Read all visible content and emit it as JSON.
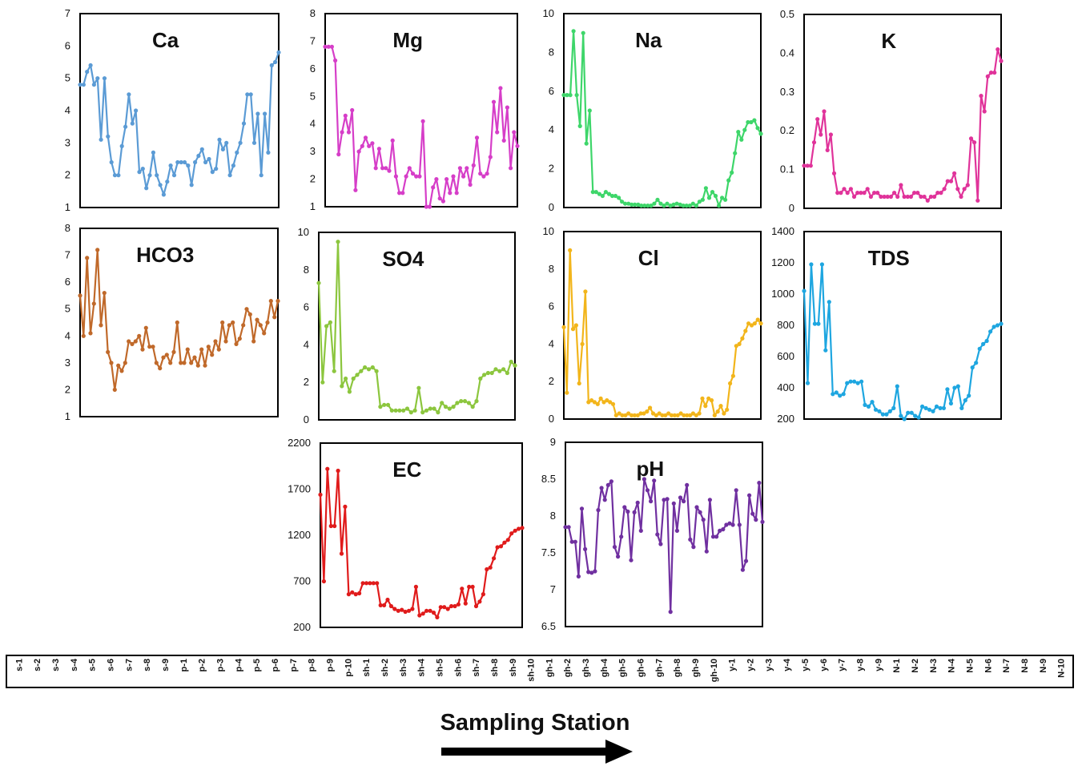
{
  "figure": {
    "x_axis_title": "Sampling Station",
    "arrow_color": "#000000"
  },
  "chart_data": [
    {
      "id": "ca",
      "type": "line",
      "title": "Ca",
      "color": "#5b9bd5",
      "ylim": [
        1,
        7
      ],
      "yticks": [
        1,
        2,
        3,
        4,
        5,
        6,
        7
      ],
      "values": [
        4.8,
        4.8,
        5.2,
        5.4,
        4.8,
        5.0,
        3.1,
        5.0,
        3.2,
        2.4,
        2.0,
        2.0,
        2.9,
        3.5,
        4.5,
        3.6,
        4.0,
        2.1,
        2.2,
        1.6,
        2.0,
        2.7,
        2.0,
        1.7,
        1.4,
        1.8,
        2.3,
        2.0,
        2.4,
        2.4,
        2.4,
        2.3,
        1.7,
        2.4,
        2.6,
        2.8,
        2.4,
        2.5,
        2.1,
        2.2,
        3.1,
        2.8,
        3.0,
        2.0,
        2.3,
        2.7,
        3.0,
        3.6,
        4.5,
        4.5,
        3.0,
        3.9,
        2.0,
        3.9,
        2.7,
        5.4,
        5.5,
        5.8
      ]
    },
    {
      "id": "mg",
      "type": "line",
      "title": "Mg",
      "color": "#d63ec8",
      "ylim": [
        1,
        8
      ],
      "yticks": [
        1,
        2,
        3,
        4,
        5,
        6,
        7,
        8
      ],
      "values": [
        6.8,
        6.8,
        6.8,
        6.3,
        2.9,
        3.7,
        4.3,
        3.7,
        4.5,
        1.6,
        3.0,
        3.2,
        3.5,
        3.2,
        3.3,
        2.4,
        3.1,
        2.4,
        2.4,
        2.3,
        3.4,
        2.1,
        1.5,
        1.5,
        2.1,
        2.4,
        2.2,
        2.1,
        2.1,
        4.1,
        1.0,
        1.0,
        1.7,
        2.0,
        1.3,
        1.2,
        2.0,
        1.5,
        2.1,
        1.5,
        2.4,
        2.1,
        2.4,
        1.8,
        2.5,
        3.5,
        2.2,
        2.1,
        2.2,
        2.8,
        4.8,
        3.7,
        5.3,
        3.4,
        4.6,
        2.4,
        3.7,
        3.2
      ]
    },
    {
      "id": "na",
      "type": "line",
      "title": "Na",
      "color": "#3ed66a",
      "ylim": [
        0,
        10
      ],
      "yticks": [
        0,
        2,
        4,
        6,
        8,
        10
      ],
      "values": [
        5.8,
        5.8,
        5.8,
        9.1,
        5.8,
        4.2,
        9.0,
        3.3,
        5.0,
        0.8,
        0.8,
        0.7,
        0.6,
        0.8,
        0.7,
        0.6,
        0.6,
        0.5,
        0.3,
        0.2,
        0.2,
        0.15,
        0.15,
        0.15,
        0.1,
        0.1,
        0.1,
        0.1,
        0.2,
        0.4,
        0.2,
        0.1,
        0.2,
        0.1,
        0.15,
        0.2,
        0.15,
        0.1,
        0.1,
        0.1,
        0.2,
        0.1,
        0.3,
        0.4,
        1.0,
        0.5,
        0.8,
        0.6,
        0.1,
        0.5,
        0.4,
        1.4,
        1.8,
        2.8,
        3.9,
        3.5,
        4.0,
        4.4,
        4.4,
        4.5,
        4.1,
        3.8
      ]
    },
    {
      "id": "k",
      "type": "line",
      "title": "K",
      "color": "#e0339a",
      "ylim": [
        0,
        0.5
      ],
      "yticks": [
        0,
        0.1,
        0.2,
        0.3,
        0.4,
        0.5
      ],
      "values": [
        0.11,
        0.11,
        0.11,
        0.17,
        0.23,
        0.19,
        0.25,
        0.15,
        0.19,
        0.09,
        0.04,
        0.04,
        0.05,
        0.04,
        0.05,
        0.03,
        0.04,
        0.04,
        0.04,
        0.05,
        0.03,
        0.04,
        0.04,
        0.03,
        0.03,
        0.03,
        0.03,
        0.04,
        0.03,
        0.06,
        0.03,
        0.03,
        0.03,
        0.04,
        0.04,
        0.03,
        0.03,
        0.02,
        0.03,
        0.03,
        0.04,
        0.04,
        0.05,
        0.07,
        0.07,
        0.09,
        0.05,
        0.03,
        0.05,
        0.06,
        0.18,
        0.17,
        0.02,
        0.29,
        0.25,
        0.34,
        0.35,
        0.35,
        0.41,
        0.38
      ]
    },
    {
      "id": "hco3",
      "type": "line",
      "title": "HCO3",
      "color": "#c0692a",
      "ylim": [
        1,
        8
      ],
      "yticks": [
        1,
        2,
        3,
        4,
        5,
        6,
        7,
        8
      ],
      "values": [
        5.5,
        4.0,
        6.9,
        4.1,
        5.2,
        7.2,
        4.4,
        5.6,
        3.4,
        3.0,
        2.0,
        2.9,
        2.7,
        3.0,
        3.8,
        3.7,
        3.8,
        4.0,
        3.5,
        4.3,
        3.6,
        3.6,
        3.0,
        2.8,
        3.2,
        3.3,
        3.0,
        3.4,
        4.5,
        3.0,
        3.0,
        3.5,
        3.0,
        3.2,
        2.9,
        3.5,
        2.9,
        3.6,
        3.3,
        3.8,
        3.5,
        4.5,
        3.8,
        4.4,
        4.5,
        3.7,
        3.9,
        4.4,
        5.0,
        4.8,
        3.8,
        4.6,
        4.4,
        4.1,
        4.5,
        5.3,
        4.7,
        5.3
      ]
    },
    {
      "id": "so4",
      "type": "line",
      "title": "SO4",
      "color": "#8cc63e",
      "ylim": [
        0,
        10
      ],
      "yticks": [
        0,
        2,
        4,
        6,
        8,
        10
      ],
      "values": [
        7.3,
        2.0,
        5.0,
        5.2,
        2.6,
        9.5,
        1.8,
        2.2,
        1.5,
        2.2,
        2.4,
        2.6,
        2.8,
        2.7,
        2.8,
        2.6,
        0.7,
        0.8,
        0.8,
        0.5,
        0.5,
        0.5,
        0.5,
        0.6,
        0.4,
        0.5,
        1.7,
        0.4,
        0.5,
        0.6,
        0.6,
        0.4,
        0.9,
        0.7,
        0.6,
        0.7,
        0.9,
        1.0,
        1.0,
        0.9,
        0.7,
        1.0,
        2.2,
        2.4,
        2.5,
        2.5,
        2.7,
        2.6,
        2.7,
        2.5,
        3.1,
        2.9
      ]
    },
    {
      "id": "cl",
      "type": "line",
      "title": "Cl",
      "color": "#f2b51b",
      "ylim": [
        0,
        10
      ],
      "yticks": [
        0,
        2,
        4,
        6,
        8,
        10
      ],
      "values": [
        4.9,
        1.4,
        9.0,
        4.8,
        5.0,
        1.9,
        4.0,
        6.8,
        0.9,
        1.0,
        0.9,
        0.8,
        1.1,
        0.9,
        1.0,
        0.9,
        0.8,
        0.2,
        0.3,
        0.2,
        0.2,
        0.3,
        0.2,
        0.2,
        0.2,
        0.3,
        0.3,
        0.4,
        0.6,
        0.3,
        0.2,
        0.3,
        0.2,
        0.2,
        0.3,
        0.2,
        0.2,
        0.2,
        0.3,
        0.2,
        0.2,
        0.2,
        0.3,
        0.2,
        0.3,
        1.1,
        0.7,
        1.1,
        1.0,
        0.2,
        0.4,
        0.7,
        0.3,
        0.5,
        1.9,
        2.3,
        3.9,
        4.0,
        4.3,
        4.7,
        5.1,
        5.0,
        5.1,
        5.3,
        5.1
      ]
    },
    {
      "id": "tds",
      "type": "line",
      "title": "TDS",
      "color": "#1ea6e0",
      "ylim": [
        200,
        1400
      ],
      "yticks": [
        200,
        400,
        600,
        800,
        1000,
        1200,
        1400
      ],
      "values": [
        1020,
        430,
        1190,
        810,
        810,
        1190,
        640,
        950,
        360,
        370,
        350,
        360,
        430,
        440,
        440,
        430,
        440,
        290,
        280,
        310,
        260,
        250,
        230,
        230,
        250,
        270,
        410,
        220,
        200,
        240,
        240,
        220,
        210,
        280,
        270,
        260,
        250,
        280,
        270,
        270,
        390,
        300,
        400,
        410,
        270,
        320,
        350,
        530,
        560,
        650,
        680,
        700,
        760,
        790,
        800,
        810
      ]
    },
    {
      "id": "ec",
      "type": "line",
      "title": "EC",
      "color": "#e01b1b",
      "ylim": [
        200,
        2200
      ],
      "yticks": [
        200,
        700,
        1200,
        1700,
        2200
      ],
      "values": [
        1640,
        700,
        1920,
        1300,
        1300,
        1900,
        1000,
        1510,
        560,
        580,
        560,
        570,
        680,
        680,
        680,
        680,
        680,
        440,
        440,
        500,
        430,
        400,
        380,
        390,
        370,
        380,
        400,
        640,
        330,
        350,
        380,
        380,
        360,
        310,
        420,
        420,
        400,
        430,
        430,
        450,
        620,
        460,
        640,
        640,
        430,
        480,
        560,
        830,
        850,
        950,
        1070,
        1080,
        1120,
        1150,
        1220,
        1250,
        1270,
        1280
      ]
    },
    {
      "id": "ph",
      "type": "line",
      "title": "pH",
      "color": "#7030a0",
      "ylim": [
        6.5,
        9
      ],
      "yticks": [
        6.5,
        7,
        7.5,
        8,
        8.5,
        9
      ],
      "values": [
        7.85,
        7.85,
        7.65,
        7.65,
        7.18,
        8.1,
        7.55,
        7.24,
        7.23,
        7.25,
        8.08,
        8.38,
        8.22,
        8.42,
        8.47,
        7.58,
        7.45,
        7.72,
        8.12,
        8.06,
        7.4,
        8.05,
        8.18,
        7.8,
        8.5,
        8.35,
        8.2,
        8.48,
        7.75,
        7.62,
        8.22,
        8.23,
        6.7,
        8.17,
        7.8,
        8.25,
        8.2,
        8.42,
        7.68,
        7.58,
        8.12,
        8.05,
        7.95,
        7.52,
        8.22,
        7.72,
        7.72,
        7.8,
        7.82,
        7.88,
        7.9,
        7.88,
        8.35,
        7.88,
        7.27,
        7.39,
        8.28,
        8.03,
        7.95,
        8.45,
        7.92
      ]
    }
  ],
  "stations": [
    "s-1",
    "s-2",
    "s-3",
    "s-4",
    "s-5",
    "s-6",
    "s-7",
    "s-8",
    "s-9",
    "p-1",
    "p-2",
    "p-3",
    "p-4",
    "p-5",
    "p-6",
    "p-7",
    "p-8",
    "p-9",
    "p-10",
    "sh-1",
    "sh-2",
    "sh-3",
    "sh-4",
    "sh-5",
    "sh-6",
    "sh-7",
    "sh-8",
    "sh-9",
    "sh-10",
    "gh-1",
    "gh-2",
    "gh-3",
    "gh-4",
    "gh-5",
    "gh-6",
    "gh-7",
    "gh-8",
    "gh-9",
    "gh-10",
    "y-1",
    "y-2",
    "y-3",
    "y-4",
    "y-5",
    "y-6",
    "y-7",
    "y-8",
    "y-9",
    "N-1",
    "N-2",
    "N-3",
    "N-4",
    "N-5",
    "N-6",
    "N-7",
    "N-8",
    "N-9",
    "N-10"
  ]
}
